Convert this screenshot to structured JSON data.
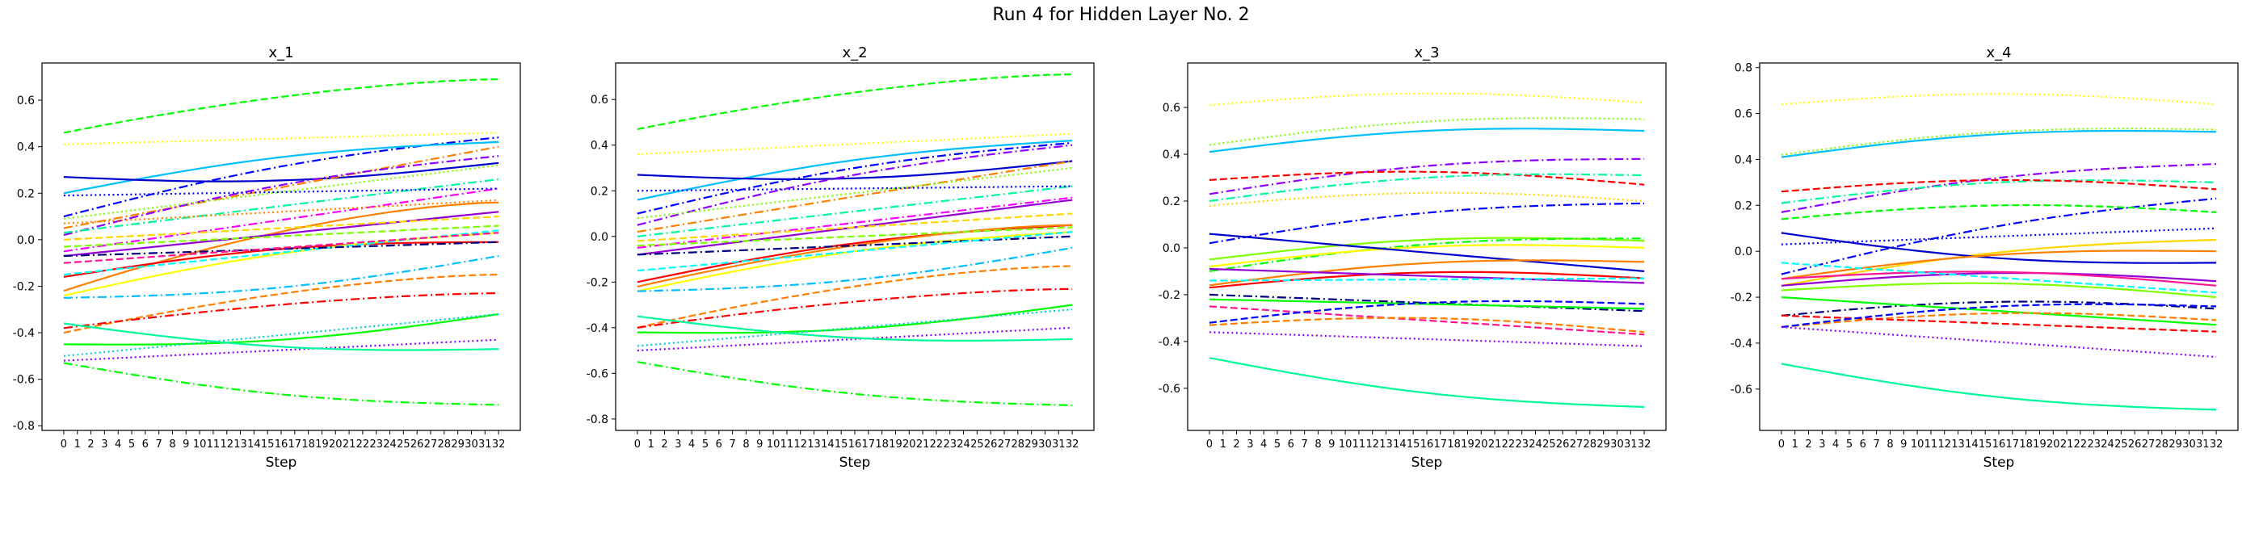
{
  "figure": {
    "suptitle": "Run 4 for Hidden Layer No. 2"
  },
  "chart_data": [
    {
      "type": "line",
      "title": "x_1",
      "xlabel": "Step",
      "ylabel": "",
      "xlim": [
        -1.6,
        33.6
      ],
      "ylim": [
        -0.82,
        0.76
      ],
      "yticks": [
        -0.8,
        -0.6,
        -0.4,
        -0.2,
        0.0,
        0.2,
        0.4,
        0.6
      ],
      "grid": false,
      "series": [
        {
          "color": "#00ff00",
          "style": "dashed",
          "y0": 0.46,
          "y1": 0.69,
          "shape": "convex"
        },
        {
          "color": "#ffff00",
          "style": "dotted",
          "y0": 0.41,
          "y1": 0.46,
          "shape": "linear"
        },
        {
          "color": "#0000ff",
          "style": "dashdot",
          "y0": 0.1,
          "y1": 0.44,
          "shape": "hump"
        },
        {
          "color": "#00bfff",
          "style": "solid",
          "y0": 0.2,
          "y1": 0.42,
          "shape": "hump"
        },
        {
          "color": "#0000cd",
          "style": "solid",
          "y0": 0.27,
          "y1": 0.33,
          "shape": "dip"
        },
        {
          "color": "#ff7f00",
          "style": "dashdot",
          "y0": 0.05,
          "y1": 0.4,
          "shape": "linear"
        },
        {
          "color": "#8f00ff",
          "style": "dashdot",
          "y0": 0.02,
          "y1": 0.36,
          "shape": "hump"
        },
        {
          "color": "#7fff00",
          "style": "dotted",
          "y0": 0.09,
          "y1": 0.32,
          "shape": "linear"
        },
        {
          "color": "#00fa9a",
          "style": "dashdot",
          "y0": 0.03,
          "y1": 0.26,
          "shape": "linear"
        },
        {
          "color": "#ff00ff",
          "style": "dashdot",
          "y0": -0.05,
          "y1": 0.22,
          "shape": "linear"
        },
        {
          "color": "#0000ff",
          "style": "dotted",
          "y0": 0.19,
          "y1": 0.22,
          "shape": "linear"
        },
        {
          "color": "#ff7f00",
          "style": "dotted",
          "y0": 0.07,
          "y1": 0.17,
          "shape": "linear"
        },
        {
          "color": "#ff7f00",
          "style": "solid",
          "y0": -0.22,
          "y1": 0.16,
          "shape": "convex"
        },
        {
          "color": "#9400d3",
          "style": "solid",
          "y0": -0.07,
          "y1": 0.12,
          "shape": "linear"
        },
        {
          "color": "#ffd700",
          "style": "dashed",
          "y0": 0.0,
          "y1": 0.1,
          "shape": "linear"
        },
        {
          "color": "#7fff00",
          "style": "dashed",
          "y0": -0.03,
          "y1": 0.06,
          "shape": "linear"
        },
        {
          "color": "#ff0000",
          "style": "solid",
          "y0": -0.16,
          "y1": -0.01,
          "shape": "hump"
        },
        {
          "color": "#ffff00",
          "style": "solid",
          "y0": -0.24,
          "y1": 0.03,
          "shape": "hump"
        },
        {
          "color": "#00ffff",
          "style": "dashed",
          "y0": -0.15,
          "y1": 0.04,
          "shape": "linear"
        },
        {
          "color": "#000080",
          "style": "dashdot",
          "y0": -0.07,
          "y1": -0.01,
          "shape": "linear"
        },
        {
          "color": "#ff1493",
          "style": "dashed",
          "y0": -0.1,
          "y1": 0.03,
          "shape": "linear"
        },
        {
          "color": "#00bfff",
          "style": "dashdot",
          "y0": -0.25,
          "y1": -0.07,
          "shape": "dip"
        },
        {
          "color": "#ff7f00",
          "style": "dashed",
          "y0": -0.4,
          "y1": -0.15,
          "shape": "convex"
        },
        {
          "color": "#ff0000",
          "style": "dashdot",
          "y0": -0.38,
          "y1": -0.23,
          "shape": "convex"
        },
        {
          "color": "#00ff00",
          "style": "solid",
          "y0": -0.45,
          "y1": -0.32,
          "shape": "dip"
        },
        {
          "color": "#00ced1",
          "style": "dotted",
          "y0": -0.5,
          "y1": -0.32,
          "shape": "linear"
        },
        {
          "color": "#8b00ff",
          "style": "dotted",
          "y0": -0.52,
          "y1": -0.43,
          "shape": "linear"
        },
        {
          "color": "#00fa9a",
          "style": "solid",
          "y0": -0.36,
          "y1": -0.47,
          "shape": "dip"
        },
        {
          "color": "#00ff00",
          "style": "dashdot",
          "y0": -0.53,
          "y1": -0.71,
          "shape": "dip"
        }
      ]
    },
    {
      "type": "line",
      "title": "x_2",
      "xlabel": "Step",
      "ylabel": "",
      "xlim": [
        -1.6,
        33.6
      ],
      "ylim": [
        -0.85,
        0.76
      ],
      "yticks": [
        -0.8,
        -0.6,
        -0.4,
        -0.2,
        0.0,
        0.2,
        0.4,
        0.6
      ],
      "grid": false,
      "series": [
        {
          "color": "#00ff00",
          "style": "dashed",
          "y0": 0.47,
          "y1": 0.71,
          "shape": "convex"
        },
        {
          "color": "#ffff00",
          "style": "dotted",
          "y0": 0.36,
          "y1": 0.45,
          "shape": "linear"
        },
        {
          "color": "#0000ff",
          "style": "dashdot",
          "y0": 0.1,
          "y1": 0.41,
          "shape": "hump"
        },
        {
          "color": "#00bfff",
          "style": "solid",
          "y0": 0.16,
          "y1": 0.42,
          "shape": "hump"
        },
        {
          "color": "#0000cd",
          "style": "solid",
          "y0": 0.27,
          "y1": 0.33,
          "shape": "dip"
        },
        {
          "color": "#8f00ff",
          "style": "dashdot",
          "y0": 0.05,
          "y1": 0.4,
          "shape": "hump"
        },
        {
          "color": "#ff7f00",
          "style": "dashdot",
          "y0": 0.02,
          "y1": 0.33,
          "shape": "linear"
        },
        {
          "color": "#7fff00",
          "style": "dotted",
          "y0": 0.08,
          "y1": 0.3,
          "shape": "linear"
        },
        {
          "color": "#00fa9a",
          "style": "dashdot",
          "y0": 0.0,
          "y1": 0.22,
          "shape": "linear"
        },
        {
          "color": "#0000ff",
          "style": "dotted",
          "y0": 0.2,
          "y1": 0.22,
          "shape": "linear"
        },
        {
          "color": "#9400d3",
          "style": "solid",
          "y0": -0.08,
          "y1": 0.16,
          "shape": "linear"
        },
        {
          "color": "#ff00ff",
          "style": "dashdot",
          "y0": -0.05,
          "y1": 0.17,
          "shape": "linear"
        },
        {
          "color": "#ffd700",
          "style": "dashed",
          "y0": -0.02,
          "y1": 0.1,
          "shape": "linear"
        },
        {
          "color": "#ff0000",
          "style": "solid",
          "y0": -0.2,
          "y1": 0.05,
          "shape": "hump"
        },
        {
          "color": "#ff7f00",
          "style": "solid",
          "y0": -0.22,
          "y1": 0.05,
          "shape": "convex"
        },
        {
          "color": "#ffff00",
          "style": "solid",
          "y0": -0.24,
          "y1": 0.02,
          "shape": "hump"
        },
        {
          "color": "#7fff00",
          "style": "dashed",
          "y0": -0.04,
          "y1": 0.04,
          "shape": "linear"
        },
        {
          "color": "#000080",
          "style": "dashdot",
          "y0": -0.08,
          "y1": 0.0,
          "shape": "linear"
        },
        {
          "color": "#00ffff",
          "style": "dashed",
          "y0": -0.15,
          "y1": 0.02,
          "shape": "linear"
        },
        {
          "color": "#00bfff",
          "style": "dashdot",
          "y0": -0.24,
          "y1": -0.05,
          "shape": "dip"
        },
        {
          "color": "#ff7f00",
          "style": "dashed",
          "y0": -0.4,
          "y1": -0.13,
          "shape": "convex"
        },
        {
          "color": "#ff0000",
          "style": "dashdot",
          "y0": -0.4,
          "y1": -0.23,
          "shape": "convex"
        },
        {
          "color": "#00ff00",
          "style": "solid",
          "y0": -0.42,
          "y1": -0.3,
          "shape": "dip"
        },
        {
          "color": "#00ced1",
          "style": "dotted",
          "y0": -0.48,
          "y1": -0.32,
          "shape": "linear"
        },
        {
          "color": "#8b00ff",
          "style": "dotted",
          "y0": -0.5,
          "y1": -0.4,
          "shape": "linear"
        },
        {
          "color": "#00fa9a",
          "style": "solid",
          "y0": -0.35,
          "y1": -0.45,
          "shape": "dip"
        },
        {
          "color": "#00ff00",
          "style": "dashdot",
          "y0": -0.55,
          "y1": -0.74,
          "shape": "dip"
        }
      ]
    },
    {
      "type": "line",
      "title": "x_3",
      "xlabel": "Step",
      "ylabel": "",
      "xlim": [
        -1.6,
        33.6
      ],
      "ylim": [
        -0.78,
        0.79
      ],
      "yticks": [
        -0.6,
        -0.4,
        -0.2,
        0.0,
        0.2,
        0.4,
        0.6
      ],
      "grid": false,
      "series": [
        {
          "color": "#ffff00",
          "style": "dotted",
          "y0": 0.61,
          "y1": 0.62,
          "shape": "hump"
        },
        {
          "color": "#00bfff",
          "style": "solid",
          "y0": 0.41,
          "y1": 0.5,
          "shape": "hump"
        },
        {
          "color": "#7fff00",
          "style": "dotted",
          "y0": 0.44,
          "y1": 0.55,
          "shape": "hump"
        },
        {
          "color": "#8f00ff",
          "style": "dashdot",
          "y0": 0.23,
          "y1": 0.38,
          "shape": "hump"
        },
        {
          "color": "#ff0000",
          "style": "dashed",
          "y0": 0.29,
          "y1": 0.27,
          "shape": "hump"
        },
        {
          "color": "#00fa9a",
          "style": "dashdot",
          "y0": 0.2,
          "y1": 0.31,
          "shape": "hump"
        },
        {
          "color": "#ffd700",
          "style": "dotted",
          "y0": 0.18,
          "y1": 0.2,
          "shape": "hump"
        },
        {
          "color": "#0000ff",
          "style": "dashdot",
          "y0": 0.02,
          "y1": 0.19,
          "shape": "hump"
        },
        {
          "color": "#7fff00",
          "style": "solid",
          "y0": -0.05,
          "y1": 0.03,
          "shape": "hump"
        },
        {
          "color": "#00ff00",
          "style": "dashdot",
          "y0": -0.1,
          "y1": 0.04,
          "shape": "hump"
        },
        {
          "color": "#ffff00",
          "style": "solid",
          "y0": -0.08,
          "y1": 0.0,
          "shape": "hump"
        },
        {
          "color": "#0000cd",
          "style": "solid",
          "y0": 0.06,
          "y1": -0.1,
          "shape": "linear"
        },
        {
          "color": "#ff7f00",
          "style": "solid",
          "y0": -0.16,
          "y1": -0.06,
          "shape": "hump"
        },
        {
          "color": "#ff0000",
          "style": "solid",
          "y0": -0.17,
          "y1": -0.13,
          "shape": "hump"
        },
        {
          "color": "#9400d3",
          "style": "solid",
          "y0": -0.09,
          "y1": -0.15,
          "shape": "linear"
        },
        {
          "color": "#00ffff",
          "style": "dashed",
          "y0": -0.14,
          "y1": -0.13,
          "shape": "linear"
        },
        {
          "color": "#000080",
          "style": "dashdot",
          "y0": -0.2,
          "y1": -0.27,
          "shape": "linear"
        },
        {
          "color": "#00ff00",
          "style": "solid",
          "y0": -0.22,
          "y1": -0.26,
          "shape": "linear"
        },
        {
          "color": "#ff1493",
          "style": "dashed",
          "y0": -0.25,
          "y1": -0.37,
          "shape": "linear"
        },
        {
          "color": "#ff7f00",
          "style": "dashed",
          "y0": -0.33,
          "y1": -0.36,
          "shape": "hump"
        },
        {
          "color": "#0000ff",
          "style": "dashed",
          "y0": -0.32,
          "y1": -0.24,
          "shape": "hump"
        },
        {
          "color": "#8b00ff",
          "style": "dotted",
          "y0": -0.36,
          "y1": -0.42,
          "shape": "linear"
        },
        {
          "color": "#00fa9a",
          "style": "solid",
          "y0": -0.47,
          "y1": -0.68,
          "shape": "dip"
        }
      ]
    },
    {
      "type": "line",
      "title": "x_4",
      "xlabel": "Step",
      "ylabel": "",
      "xlim": [
        -1.6,
        33.6
      ],
      "ylim": [
        -0.78,
        0.82
      ],
      "yticks": [
        -0.6,
        -0.4,
        -0.2,
        0.0,
        0.2,
        0.4,
        0.6,
        0.8
      ],
      "grid": false,
      "series": [
        {
          "color": "#ffff00",
          "style": "dotted",
          "y0": 0.64,
          "y1": 0.64,
          "shape": "hump"
        },
        {
          "color": "#00bfff",
          "style": "solid",
          "y0": 0.41,
          "y1": 0.52,
          "shape": "hump"
        },
        {
          "color": "#7fff00",
          "style": "dotted",
          "y0": 0.42,
          "y1": 0.53,
          "shape": "hump"
        },
        {
          "color": "#8f00ff",
          "style": "dashdot",
          "y0": 0.17,
          "y1": 0.38,
          "shape": "hump"
        },
        {
          "color": "#00fa9a",
          "style": "dashdot",
          "y0": 0.21,
          "y1": 0.3,
          "shape": "hump"
        },
        {
          "color": "#ff0000",
          "style": "dashed",
          "y0": 0.26,
          "y1": 0.27,
          "shape": "hump"
        },
        {
          "color": "#0000ff",
          "style": "dashdot",
          "y0": -0.1,
          "y1": 0.23,
          "shape": "hump"
        },
        {
          "color": "#00ff00",
          "style": "dashed",
          "y0": 0.14,
          "y1": 0.17,
          "shape": "hump"
        },
        {
          "color": "#0000ff",
          "style": "dotted",
          "y0": 0.03,
          "y1": 0.1,
          "shape": "linear"
        },
        {
          "color": "#ffd700",
          "style": "solid",
          "y0": -0.15,
          "y1": 0.05,
          "shape": "hump"
        },
        {
          "color": "#0000cd",
          "style": "solid",
          "y0": 0.08,
          "y1": -0.05,
          "shape": "dip"
        },
        {
          "color": "#ff7f00",
          "style": "solid",
          "y0": -0.12,
          "y1": 0.0,
          "shape": "hump"
        },
        {
          "color": "#9400d3",
          "style": "solid",
          "y0": -0.15,
          "y1": -0.13,
          "shape": "hump"
        },
        {
          "color": "#ff1493",
          "style": "solid",
          "y0": -0.12,
          "y1": -0.15,
          "shape": "hump"
        },
        {
          "color": "#00ffff",
          "style": "dashed",
          "y0": -0.05,
          "y1": -0.18,
          "shape": "linear"
        },
        {
          "color": "#7fff00",
          "style": "solid",
          "y0": -0.17,
          "y1": -0.2,
          "shape": "hump"
        },
        {
          "color": "#000080",
          "style": "dashdot",
          "y0": -0.28,
          "y1": -0.25,
          "shape": "hump"
        },
        {
          "color": "#00ff00",
          "style": "solid",
          "y0": -0.2,
          "y1": -0.32,
          "shape": "linear"
        },
        {
          "color": "#ff7f00",
          "style": "dashed",
          "y0": -0.33,
          "y1": -0.3,
          "shape": "hump"
        },
        {
          "color": "#ff0000",
          "style": "dashed",
          "y0": -0.28,
          "y1": -0.35,
          "shape": "linear"
        },
        {
          "color": "#0000ff",
          "style": "dashed",
          "y0": -0.33,
          "y1": -0.24,
          "shape": "hump"
        },
        {
          "color": "#8b00ff",
          "style": "dotted",
          "y0": -0.33,
          "y1": -0.46,
          "shape": "linear"
        },
        {
          "color": "#00fa9a",
          "style": "solid",
          "y0": -0.49,
          "y1": -0.69,
          "shape": "dip"
        }
      ]
    }
  ]
}
